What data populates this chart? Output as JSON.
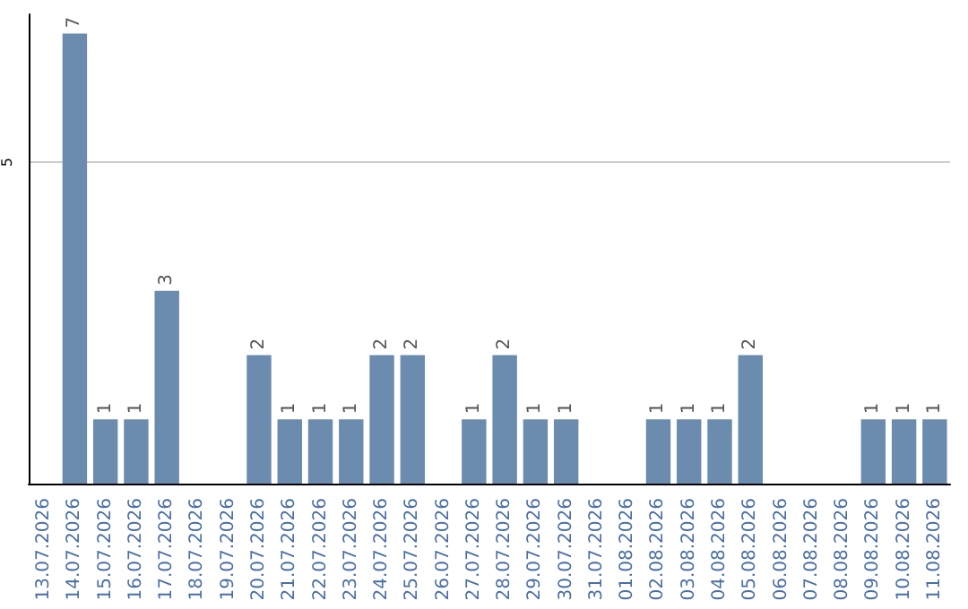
{
  "chart_data": {
    "type": "bar",
    "categories": [
      "13.07.2026",
      "14.07.2026",
      "15.07.2026",
      "16.07.2026",
      "17.07.2026",
      "18.07.2026",
      "19.07.2026",
      "20.07.2026",
      "21.07.2026",
      "22.07.2026",
      "23.07.2026",
      "24.07.2026",
      "25.07.2026",
      "26.07.2026",
      "27.07.2026",
      "28.07.2026",
      "29.07.2026",
      "30.07.2026",
      "31.07.2026",
      "01.08.2026",
      "02.08.2026",
      "03.08.2026",
      "04.08.2026",
      "05.08.2026",
      "06.08.2026",
      "07.08.2026",
      "08.08.2026",
      "09.08.2026",
      "10.08.2026",
      "11.08.2026"
    ],
    "values": [
      0,
      7,
      1,
      1,
      3,
      0,
      0,
      2,
      1,
      1,
      1,
      2,
      2,
      0,
      1,
      2,
      1,
      1,
      0,
      0,
      1,
      1,
      1,
      2,
      0,
      0,
      0,
      1,
      1,
      1
    ],
    "value_labels": [
      null,
      "7",
      "1",
      "1",
      "3",
      null,
      null,
      "2",
      "1",
      "1",
      "1",
      "2",
      "2",
      null,
      "1",
      "2",
      "1",
      "1",
      null,
      null,
      "1",
      "1",
      "1",
      "2",
      null,
      null,
      null,
      "1",
      "1",
      "1"
    ],
    "color": "#6b8cae",
    "ylim": [
      0,
      7.3
    ],
    "yticks": [
      5
    ],
    "grid": "y"
  }
}
